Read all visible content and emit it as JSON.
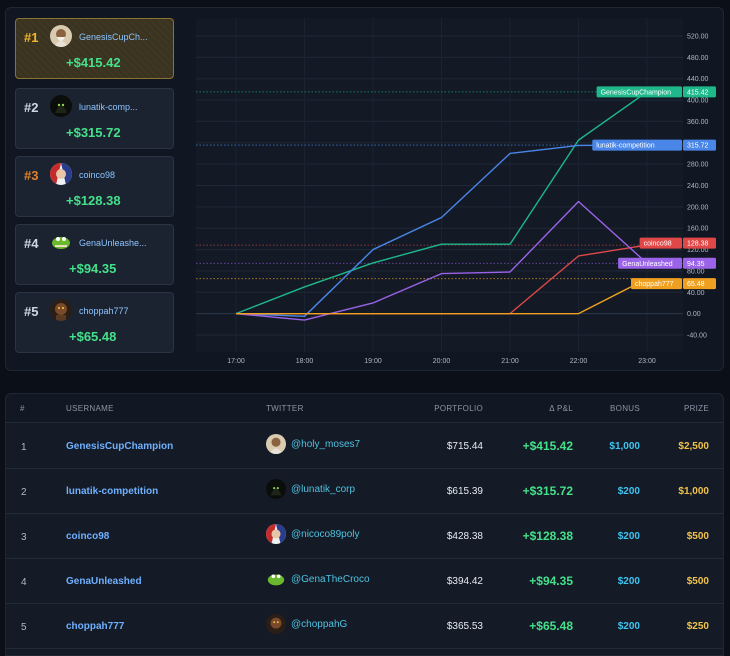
{
  "leaderboard": [
    {
      "rank_label": "#1",
      "name": "GenesisCupCh...",
      "pnl": "+$415.42",
      "avatar": "old-man-avatar"
    },
    {
      "rank_label": "#2",
      "name": "lunatik-comp...",
      "pnl": "+$315.72",
      "avatar": "dark-creature-avatar"
    },
    {
      "rank_label": "#3",
      "name": "coinco98",
      "pnl": "+$128.38",
      "avatar": "patriot-face-avatar"
    },
    {
      "rank_label": "#4",
      "name": "GenaUnleashe...",
      "pnl": "+$94.35",
      "avatar": "crocodile-avatar"
    },
    {
      "rank_label": "#5",
      "name": "choppah777",
      "pnl": "+$65.48",
      "avatar": "brown-character-avatar"
    }
  ],
  "chart_data": {
    "type": "line",
    "categories": [
      "17:00",
      "18:00",
      "19:00",
      "20:00",
      "21:00",
      "22:00",
      "23:00"
    ],
    "y_ticks": [
      "-40.00",
      "0.00",
      "40.00",
      "80.00",
      "120.00",
      "160.00",
      "200.00",
      "240.00",
      "280.00",
      "320.00",
      "360.00",
      "400.00",
      "440.00",
      "480.00",
      "520.00"
    ],
    "ylim": [
      -40,
      520
    ],
    "series": [
      {
        "name": "GenesisCupChampion",
        "color": "#1fb88a",
        "values": [
          0,
          50,
          95,
          130,
          130,
          325,
          415.42
        ],
        "last_label": "415.42"
      },
      {
        "name": "lunatik-competition",
        "color": "#4a86e8",
        "values": [
          0,
          -5,
          120,
          180,
          300,
          315,
          315.72
        ],
        "last_label": "315.72"
      },
      {
        "name": "coinco98",
        "color": "#e04848",
        "values": [
          0,
          0,
          0,
          0,
          0,
          108,
          128.38
        ],
        "last_label": "128.38"
      },
      {
        "name": "GenaUnleashed",
        "color": "#9b63e8",
        "values": [
          0,
          -12,
          20,
          75,
          78,
          210,
          94.35
        ],
        "last_label": "94.35"
      },
      {
        "name": "choppah777",
        "color": "#f0a020",
        "values": [
          0,
          0,
          0,
          0,
          0,
          0,
          65.48
        ],
        "last_label": "65.48"
      }
    ]
  },
  "table": {
    "headers": {
      "rank": "#",
      "username": "USERNAME",
      "twitter": "TWITTER",
      "portfolio": "PORTFOLIO",
      "pnl": "Δ P&L",
      "bonus": "BONUS",
      "prize": "PRIZE"
    },
    "rows": [
      {
        "rank": "1",
        "username": "GenesisCupChampion",
        "twitter": "@holy_moses7",
        "portfolio": "$715.44",
        "pnl": "+$415.42",
        "bonus": "$1,000",
        "prize": "$2,500",
        "avatar": "old-man-avatar"
      },
      {
        "rank": "2",
        "username": "lunatik-competition",
        "twitter": "@lunatik_corp",
        "portfolio": "$615.39",
        "pnl": "+$315.72",
        "bonus": "$200",
        "prize": "$1,000",
        "avatar": "dark-creature-avatar"
      },
      {
        "rank": "3",
        "username": "coinco98",
        "twitter": "@nicoco89poly",
        "portfolio": "$428.38",
        "pnl": "+$128.38",
        "bonus": "$200",
        "prize": "$500",
        "avatar": "patriot-face-avatar"
      },
      {
        "rank": "4",
        "username": "GenaUnleashed",
        "twitter": "@GenaTheCroco",
        "portfolio": "$394.42",
        "pnl": "+$94.35",
        "bonus": "$200",
        "prize": "$500",
        "avatar": "crocodile-avatar"
      },
      {
        "rank": "5",
        "username": "choppah777",
        "twitter": "@choppahG",
        "portfolio": "$365.53",
        "pnl": "+$65.48",
        "bonus": "$200",
        "prize": "$250",
        "avatar": "brown-character-avatar"
      }
    ]
  }
}
